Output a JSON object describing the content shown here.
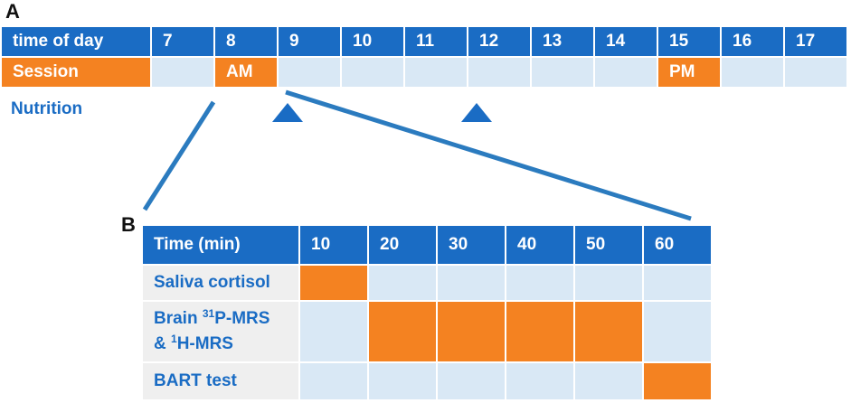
{
  "panel_a": {
    "label": "A",
    "header_label": "time of day",
    "hours": [
      "7",
      "8",
      "9",
      "10",
      "11",
      "12",
      "13",
      "14",
      "15",
      "16",
      "17"
    ],
    "session_label": "Session",
    "sessions": [
      {
        "hour": "8",
        "text": "AM"
      },
      {
        "hour": "15",
        "text": "PM"
      }
    ],
    "nutrition_label": "Nutrition",
    "nutrition_marker_hours": [
      "9",
      "12"
    ]
  },
  "panel_b": {
    "label": "B",
    "header_label": "Time (min)",
    "minutes": [
      "10",
      "20",
      "30",
      "40",
      "50",
      "60"
    ],
    "rows": [
      {
        "label": "Saliva cortisol",
        "active_minutes": [
          "10"
        ]
      },
      {
        "label_parts": [
          "Brain ",
          "31",
          "P-MRS",
          "& ",
          "1",
          "H-MRS"
        ],
        "active_minutes": [
          "20",
          "30",
          "40",
          "50"
        ]
      },
      {
        "label": "BART test",
        "active_minutes": [
          "60"
        ]
      }
    ]
  },
  "colors": {
    "header_blue": "#1a6cc4",
    "cell_light": "#d9e8f5",
    "highlight_orange": "#f48221",
    "label_gray": "#efefef"
  },
  "icons": [
    "nutrition-triangle-icon"
  ]
}
